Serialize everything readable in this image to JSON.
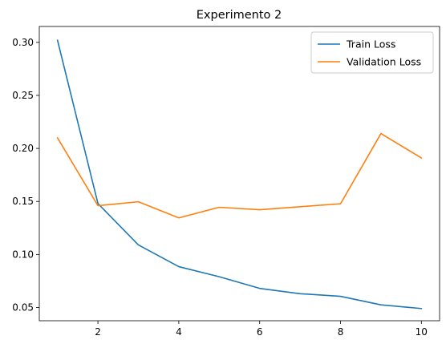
{
  "chart_data": {
    "type": "line",
    "title": "Experimento 2",
    "xlabel": "",
    "ylabel": "",
    "x": [
      1,
      2,
      3,
      4,
      5,
      6,
      7,
      8,
      9,
      10
    ],
    "xlim": [
      0.55,
      10.45
    ],
    "ylim": [
      0.0375,
      0.315
    ],
    "xticks": [
      2,
      4,
      6,
      8,
      10
    ],
    "yticks": [
      0.05,
      0.1,
      0.15,
      0.2,
      0.25,
      0.3
    ],
    "ytick_labels": [
      "0.05",
      "0.10",
      "0.15",
      "0.20",
      "0.25",
      "0.30"
    ],
    "grid": false,
    "legend_position": "top-right",
    "series": [
      {
        "name": "Train Loss",
        "color": "#1f77b4",
        "values": [
          0.302,
          0.148,
          0.109,
          0.0885,
          0.079,
          0.068,
          0.063,
          0.0605,
          0.0525,
          0.049
        ]
      },
      {
        "name": "Validation Loss",
        "color": "#ff7f0e",
        "values": [
          0.21,
          0.146,
          0.1497,
          0.1345,
          0.1445,
          0.1422,
          0.145,
          0.1478,
          0.214,
          0.191
        ]
      }
    ]
  }
}
